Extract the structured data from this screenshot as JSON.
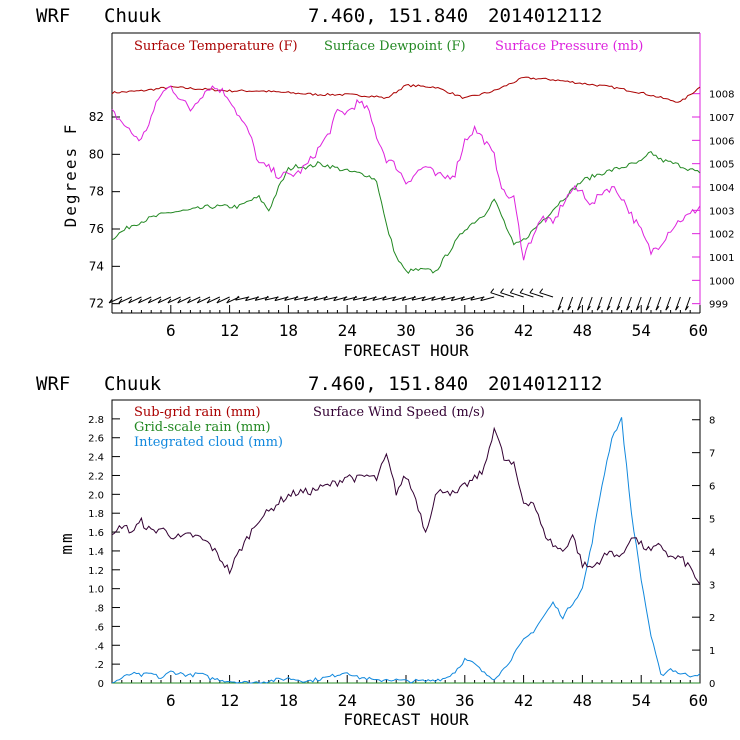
{
  "top": {
    "header": {
      "model": "WRF",
      "station": "Chuuk",
      "coords": "7.460, 151.840",
      "run": "2014012112"
    },
    "legend": {
      "temp": "Surface Temperature (F)",
      "dew": "Surface Dewpoint (F)",
      "pres": "Surface Pressure (mb)"
    },
    "ylabel": "Degrees F",
    "xlabel": "FORECAST HOUR"
  },
  "bottom": {
    "header": {
      "model": "WRF",
      "station": "Chuuk",
      "coords": "7.460, 151.840",
      "run": "2014012112"
    },
    "legend": {
      "subgrid": "Sub-grid rain (mm)",
      "gridscale": "Grid-scale rain (mm)",
      "cloud": "Integrated cloud (mm)",
      "wind": "Surface Wind Speed (m/s)"
    },
    "ylabel": "mm",
    "xlabel": "FORECAST HOUR"
  },
  "colors": {
    "temp": "#aa0000",
    "dew": "#228822",
    "pres": "#dd22dd",
    "subgrid": "#aa0000",
    "gridscale": "#228822",
    "cloud": "#1188dd",
    "wind": "#330033"
  },
  "chart_data": [
    {
      "type": "line",
      "x_ticks": [
        "6",
        "12",
        "18",
        "24",
        "30",
        "36",
        "42",
        "48",
        "54",
        "60"
      ],
      "xlim": [
        0,
        60
      ],
      "y_ticks": [
        "72",
        "74",
        "76",
        "78",
        "80",
        "82"
      ],
      "ylim": [
        71.5,
        86.5
      ],
      "y2_ticks": [
        "999",
        "1000",
        "1001",
        "1002",
        "1003",
        "1004",
        "1005",
        "1006",
        "1007",
        "1008"
      ],
      "y2lim": [
        998.6,
        1010.6
      ],
      "series": [
        {
          "name": "Surface Temperature (F)",
          "axis": "left",
          "x": [
            0,
            3,
            6,
            9,
            12,
            15,
            18,
            21,
            24,
            27,
            28,
            30,
            33,
            36,
            39,
            42,
            45,
            48,
            51,
            54,
            57,
            58,
            60
          ],
          "y": [
            83.3,
            83.4,
            83.6,
            83.5,
            83.4,
            83.4,
            83.3,
            83.2,
            83.2,
            83.1,
            83.0,
            83.7,
            83.6,
            83.0,
            83.4,
            84.1,
            84.0,
            83.8,
            83.6,
            83.3,
            82.9,
            82.8,
            83.6
          ]
        },
        {
          "name": "Surface Dewpoint (F)",
          "axis": "left",
          "x": [
            0,
            2,
            4,
            6,
            8,
            10,
            12,
            13,
            14,
            15,
            16,
            17,
            18,
            19,
            20,
            21,
            22,
            24,
            26,
            27,
            28,
            29,
            30,
            31,
            32,
            33,
            34,
            36,
            38,
            39,
            40,
            41,
            42,
            44,
            46,
            48,
            50,
            52,
            54,
            55,
            56,
            58,
            60
          ],
          "y": [
            75.5,
            76.2,
            76.6,
            76.9,
            77.0,
            77.2,
            77.2,
            77.2,
            77.5,
            77.7,
            77.0,
            78.2,
            79.2,
            79.4,
            79.3,
            79.5,
            79.4,
            79.1,
            78.9,
            78.6,
            76.2,
            74.5,
            73.7,
            73.8,
            73.8,
            73.7,
            74.5,
            76.0,
            76.8,
            77.6,
            76.4,
            75.1,
            75.4,
            76.5,
            77.6,
            78.6,
            79.0,
            79.3,
            79.6,
            80.1,
            79.7,
            79.4,
            79.0
          ]
        },
        {
          "name": "Surface Pressure (mb)",
          "axis": "right",
          "x": [
            0,
            1,
            2,
            3,
            4,
            5,
            6,
            7,
            8,
            9,
            10,
            11,
            12,
            13,
            14,
            15,
            16,
            17,
            18,
            19,
            20,
            21,
            22,
            23,
            24,
            25,
            26,
            27,
            28,
            29,
            30,
            31,
            32,
            33,
            34,
            35,
            36,
            37,
            38,
            39,
            40,
            41,
            42,
            43,
            44,
            45,
            46,
            47,
            48,
            49,
            50,
            51,
            52,
            53,
            54,
            55,
            56,
            57,
            58,
            59,
            60
          ],
          "y": [
            1007.2,
            1006.8,
            1006.3,
            1006.0,
            1007.0,
            1008.0,
            1008.3,
            1007.8,
            1007.3,
            1007.9,
            1008.3,
            1008.2,
            1007.8,
            1007.0,
            1006.3,
            1005.0,
            1004.8,
            1004.5,
            1004.5,
            1004.6,
            1005.0,
            1005.6,
            1006.2,
            1007.2,
            1007.2,
            1007.6,
            1007.4,
            1006.2,
            1005.2,
            1004.9,
            1004.2,
            1004.6,
            1004.9,
            1004.5,
            1004.4,
            1004.6,
            1006.0,
            1006.5,
            1006.0,
            1005.3,
            1003.7,
            1003.5,
            1001.0,
            1002.0,
            1002.7,
            1002.4,
            1003.3,
            1003.9,
            1003.8,
            1003.2,
            1003.8,
            1004.0,
            1003.6,
            1002.8,
            1002.1,
            1001.2,
            1001.6,
            1002.2,
            1002.6,
            1002.8,
            1003.2
          ]
        }
      ],
      "wind_barbs_row": true
    },
    {
      "type": "line",
      "x_ticks": [
        "6",
        "12",
        "18",
        "24",
        "30",
        "36",
        "42",
        "48",
        "54",
        "60"
      ],
      "xlim": [
        0,
        60
      ],
      "y_ticks": [
        "0",
        ".2",
        ".4",
        ".6",
        ".8",
        "1.0",
        "1.2",
        "1.4",
        "1.6",
        "1.8",
        "2.0",
        "2.2",
        "2.4",
        "2.6",
        "2.8"
      ],
      "ylim": [
        0,
        3.0
      ],
      "y2_ticks": [
        "0",
        "1",
        "2",
        "3",
        "4",
        "5",
        "6",
        "7",
        "8"
      ],
      "y2lim": [
        0,
        8.6
      ],
      "series": [
        {
          "name": "Sub-grid rain (mm)",
          "axis": "left",
          "x": [
            0,
            60
          ],
          "y": [
            0,
            0
          ]
        },
        {
          "name": "Grid-scale rain (mm)",
          "axis": "left",
          "x": [
            0,
            60
          ],
          "y": [
            0,
            0
          ]
        },
        {
          "name": "Integrated cloud (mm)",
          "axis": "left",
          "x": [
            0,
            1,
            2,
            3,
            4,
            5,
            6,
            7,
            8,
            9,
            10,
            12,
            14,
            16,
            18,
            20,
            22,
            24,
            25,
            26,
            27,
            28,
            30,
            32,
            34,
            35,
            36,
            37,
            38,
            39,
            40,
            41,
            42,
            43,
            44,
            45,
            46,
            47,
            48,
            49,
            50,
            51,
            52,
            53,
            54,
            55,
            56,
            57,
            58,
            59,
            60
          ],
          "y": [
            0,
            0.05,
            0.1,
            0.08,
            0.1,
            0.05,
            0.12,
            0.1,
            0.08,
            0.1,
            0.05,
            0.02,
            0.0,
            0.02,
            0.05,
            0.02,
            0.06,
            0.12,
            0.06,
            0.05,
            0.02,
            0.04,
            0.02,
            0.02,
            0.05,
            0.12,
            0.25,
            0.2,
            0.1,
            0.05,
            0.15,
            0.3,
            0.45,
            0.55,
            0.7,
            0.85,
            0.7,
            0.85,
            1.0,
            1.5,
            2.1,
            2.6,
            2.8,
            1.8,
            1.1,
            0.5,
            0.08,
            0.15,
            0.1,
            0.08,
            0.1
          ]
        },
        {
          "name": "Surface Wind Speed (m/s)",
          "axis": "right",
          "x": [
            0,
            1,
            2,
            3,
            4,
            5,
            6,
            7,
            8,
            9,
            10,
            11,
            12,
            13,
            14,
            15,
            16,
            17,
            18,
            19,
            20,
            21,
            22,
            23,
            24,
            25,
            26,
            27,
            28,
            29,
            30,
            31,
            32,
            33,
            34,
            35,
            36,
            37,
            38,
            39,
            40,
            41,
            42,
            43,
            44,
            45,
            46,
            47,
            48,
            49,
            50,
            51,
            52,
            53,
            54,
            55,
            56,
            57,
            58,
            59,
            60
          ],
          "y": [
            4.4,
            4.8,
            4.6,
            4.9,
            4.6,
            4.7,
            4.5,
            4.4,
            4.5,
            4.4,
            4.2,
            3.8,
            3.4,
            4.0,
            4.5,
            5.0,
            5.2,
            5.5,
            5.7,
            5.8,
            5.8,
            5.9,
            6.0,
            6.1,
            6.3,
            6.2,
            6.3,
            6.2,
            6.9,
            5.8,
            6.3,
            5.6,
            4.6,
            5.7,
            5.9,
            5.7,
            6.0,
            6.2,
            6.5,
            7.8,
            6.8,
            6.6,
            5.5,
            5.5,
            4.6,
            4.2,
            4.0,
            4.5,
            3.6,
            3.5,
            3.8,
            4.0,
            3.8,
            4.5,
            4.2,
            4.0,
            4.2,
            3.8,
            3.8,
            3.5,
            3.0
          ]
        }
      ]
    }
  ]
}
